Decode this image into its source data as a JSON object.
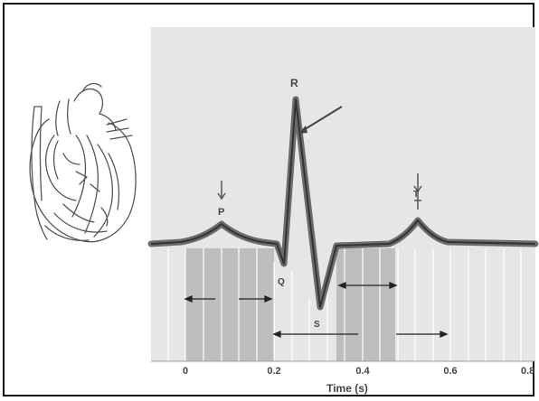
{
  "diagram": {
    "wave_labels": {
      "p": "P",
      "q": "Q",
      "r": "R",
      "s": "S",
      "t": "T"
    },
    "x_axis": {
      "title": "Time (s)",
      "ticks": [
        "0",
        "0.2",
        "0.4",
        "0.6",
        "0.8"
      ]
    },
    "heart_icon": "heart-anatomy-icon",
    "colors": {
      "panel_bg": "#e6e6e6",
      "shaded_band": "#bdbdbd",
      "trace": "#555555",
      "frame": "#111111"
    }
  }
}
